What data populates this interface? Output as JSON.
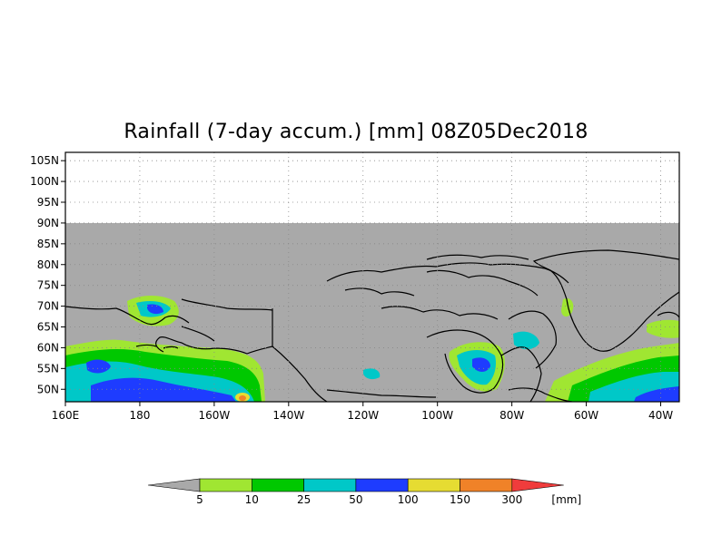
{
  "title": "Rainfall (7-day accum.) [mm] 08Z05Dec2018",
  "map": {
    "projection": "lat-lon",
    "lon_range": [
      160,
      325
    ],
    "lat_range": [
      47,
      107
    ],
    "no_data_above_lat": 90,
    "no_data_color": "#a9a9a9",
    "coastline_color": "#000000",
    "gridlines": "dotted",
    "y_ticks": [
      {
        "value": 50,
        "label": "50N"
      },
      {
        "value": 55,
        "label": "55N"
      },
      {
        "value": 60,
        "label": "60N"
      },
      {
        "value": 65,
        "label": "65N"
      },
      {
        "value": 70,
        "label": "70N"
      },
      {
        "value": 75,
        "label": "75N"
      },
      {
        "value": 80,
        "label": "80N"
      },
      {
        "value": 85,
        "label": "85N"
      },
      {
        "value": 90,
        "label": "90N"
      },
      {
        "value": 95,
        "label": "95N"
      },
      {
        "value": 100,
        "label": "100N"
      },
      {
        "value": 105,
        "label": "105N"
      }
    ],
    "x_ticks": [
      {
        "value": 160,
        "label": "160E"
      },
      {
        "value": 180,
        "label": "180"
      },
      {
        "value": 200,
        "label": "160W"
      },
      {
        "value": 220,
        "label": "140W"
      },
      {
        "value": 240,
        "label": "120W"
      },
      {
        "value": 260,
        "label": "100W"
      },
      {
        "value": 280,
        "label": "80W"
      },
      {
        "value": 300,
        "label": "60W"
      },
      {
        "value": 320,
        "label": "40W"
      }
    ]
  },
  "legend": {
    "unit": "[mm]",
    "below_color": "#a9a9a9",
    "above_color": "#f03c3c",
    "boxes": [
      {
        "color": "#a0e632"
      },
      {
        "color": "#00c800"
      },
      {
        "color": "#00c8c8"
      },
      {
        "color": "#1e3cff"
      },
      {
        "color": "#e6dc32"
      },
      {
        "color": "#f08228"
      }
    ],
    "labels": [
      "5",
      "10",
      "25",
      "50",
      "100",
      "150",
      "300"
    ]
  }
}
